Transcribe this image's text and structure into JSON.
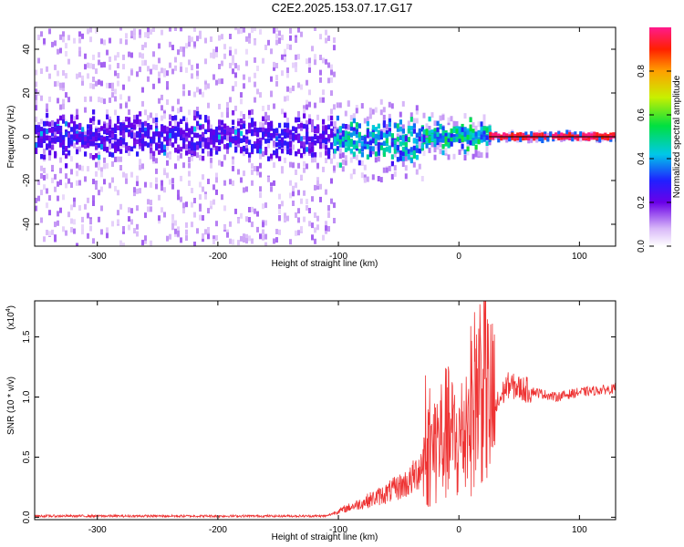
{
  "title": "C2E2.2025.153.07.17.G17",
  "chart_data": [
    {
      "type": "heatmap",
      "name": "spectrogram",
      "xlabel": "Height of straight line (km)",
      "ylabel": "Frequency (Hz)",
      "xlim": [
        -352,
        130
      ],
      "ylim": [
        -50,
        50
      ],
      "xticks": [
        -300,
        -200,
        -100,
        0,
        100
      ],
      "yticks": [
        -40,
        -20,
        0,
        20,
        40
      ],
      "colorbar": {
        "label": "Normalized spectral amplitude",
        "range": [
          0,
          1
        ],
        "ticks": [
          0.0,
          0.2,
          0.4,
          0.6,
          0.8
        ]
      },
      "regions": [
        {
          "x_range": [
            -352,
            -104
          ],
          "center_freq": 0,
          "core_halfwidth_hz": 6,
          "spread_hz": 50,
          "amplitude": 0.2
        },
        {
          "x_range": [
            -104,
            -30
          ],
          "center_freq": -2,
          "core_halfwidth_hz": 6,
          "spread_hz": 18,
          "amplitude": 0.45
        },
        {
          "x_range": [
            -30,
            25
          ],
          "center_freq": 0,
          "core_halfwidth_hz": 4,
          "spread_hz": 10,
          "amplitude": 0.5
        },
        {
          "x_range": [
            25,
            130
          ],
          "center_freq": 0,
          "core_halfwidth_hz": 1,
          "spread_hz": 2,
          "amplitude": 0.95
        }
      ]
    },
    {
      "type": "line",
      "name": "snr",
      "xlabel": "Height of straight line (km)",
      "ylabel": "SNR (10 * v/v)",
      "yscale_label": "(x10",
      "yscale_exp": "4",
      "xlim": [
        -352,
        130
      ],
      "ylim": [
        -0.02,
        1.8
      ],
      "xticks": [
        -300,
        -200,
        -100,
        0,
        100
      ],
      "yticks": [
        0.0,
        0.5,
        1.0,
        1.5
      ],
      "color": "#ee3333",
      "series": [
        {
          "name": "SNR",
          "x": [
            -352,
            -110,
            -100,
            -80,
            -60,
            -40,
            -30,
            -20,
            -10,
            0,
            10,
            20,
            25,
            30,
            40,
            60,
            80,
            100,
            130
          ],
          "y": [
            0.01,
            0.01,
            0.05,
            0.12,
            0.2,
            0.3,
            0.45,
            0.6,
            0.7,
            0.6,
            0.9,
            1.2,
            0.95,
            0.9,
            1.1,
            1.05,
            1.0,
            1.04,
            1.07
          ]
        }
      ]
    }
  ]
}
